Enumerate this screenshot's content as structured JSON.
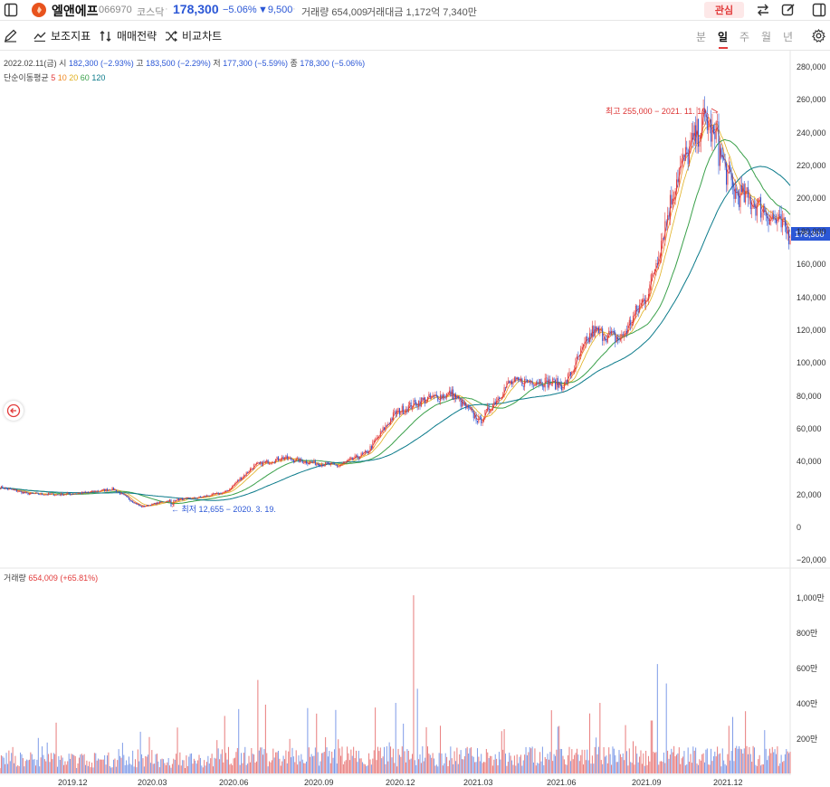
{
  "header": {
    "stock_name": "엘앤에프",
    "stock_code": "066970",
    "market": "코스닥",
    "price": "178,300",
    "change_rate": "−5.06%",
    "change_amount": "▼9,500",
    "volume": "거래량 654,009",
    "trade_amount": "거래대금 1,172억 7,340만",
    "favorite_label": "관심"
  },
  "toolbar": {
    "indicators_label": "보조지표",
    "strategy_label": "매매전략",
    "compare_label": "비교차트",
    "periods": [
      "분",
      "일",
      "주",
      "월",
      "년"
    ],
    "active_period": "일"
  },
  "legend": {
    "date": "2022.02.11(금)",
    "open_label": "시",
    "open": "182,300 (−2.93%)",
    "high_label": "고",
    "high": "183,500 (−2.29%)",
    "low_label": "저",
    "low": "177,300 (−5.59%)",
    "close_label": "종",
    "close": "178,300 (−5.06%)",
    "ma_title": "단순이동평균",
    "ma_periods": [
      "5",
      "10",
      "20",
      "60",
      "120"
    ],
    "ma_colors": [
      "#e23b3b",
      "#f08a24",
      "#e0b020",
      "#3aa04a",
      "#0a7a8a"
    ]
  },
  "annotations": {
    "high": "최고 255,000 − 2021. 11. 19. →",
    "low": "← 최저 12,655 − 2020. 3. 19."
  },
  "volume_legend": {
    "label": "거래량",
    "value": "654,009 (+65.81%)"
  },
  "price_tag": "178,300",
  "chart_data": {
    "type": "candlestick",
    "price_axis": {
      "ticks": [
        "280,000",
        "260,000",
        "240,000",
        "220,000",
        "200,000",
        "180,000",
        "160,000",
        "140,000",
        "120,000",
        "100,000",
        "80,000",
        "60,000",
        "40,000",
        "20,000",
        "0",
        "−20,000"
      ],
      "range": [
        -20000,
        280000
      ]
    },
    "volume_axis": {
      "ticks": [
        "1,000만",
        "800만",
        "600만",
        "400만",
        "200만"
      ],
      "range": [
        0,
        10000000
      ]
    },
    "x_ticks": [
      "2019.12",
      "2020.03",
      "2020.06",
      "2020.09",
      "2020.12",
      "2021.03",
      "2021.06",
      "2021.09",
      "2021.12"
    ],
    "close_series": [
      [
        "2019-10",
        25000
      ],
      [
        "2019-11",
        21000
      ],
      [
        "2019-12",
        20500
      ],
      [
        "2020-01",
        21500
      ],
      [
        "2020-02",
        24000
      ],
      [
        "2020-03",
        13000
      ],
      [
        "2020-04",
        17000
      ],
      [
        "2020-05",
        18500
      ],
      [
        "2020-06",
        22000
      ],
      [
        "2020-07",
        38000
      ],
      [
        "2020-08",
        43000
      ],
      [
        "2020-09",
        40000
      ],
      [
        "2020-10",
        38000
      ],
      [
        "2020-11",
        46000
      ],
      [
        "2020-12",
        70000
      ],
      [
        "2021-01",
        78000
      ],
      [
        "2021-02",
        82000
      ],
      [
        "2021-03",
        65000
      ],
      [
        "2021-04",
        88000
      ],
      [
        "2021-05",
        90000
      ],
      [
        "2021-06",
        87000
      ],
      [
        "2021-07",
        120000
      ],
      [
        "2021-08",
        115000
      ],
      [
        "2021-09",
        145000
      ],
      [
        "2021-10",
        215000
      ],
      [
        "2021-11",
        250000
      ],
      [
        "2021-12",
        205000
      ],
      [
        "2022-01",
        195000
      ],
      [
        "2022-02",
        178300
      ]
    ],
    "high": {
      "date": "2021-11-19",
      "value": 255000
    },
    "low": {
      "date": "2020-03-19",
      "value": 12655
    },
    "grid": false
  }
}
